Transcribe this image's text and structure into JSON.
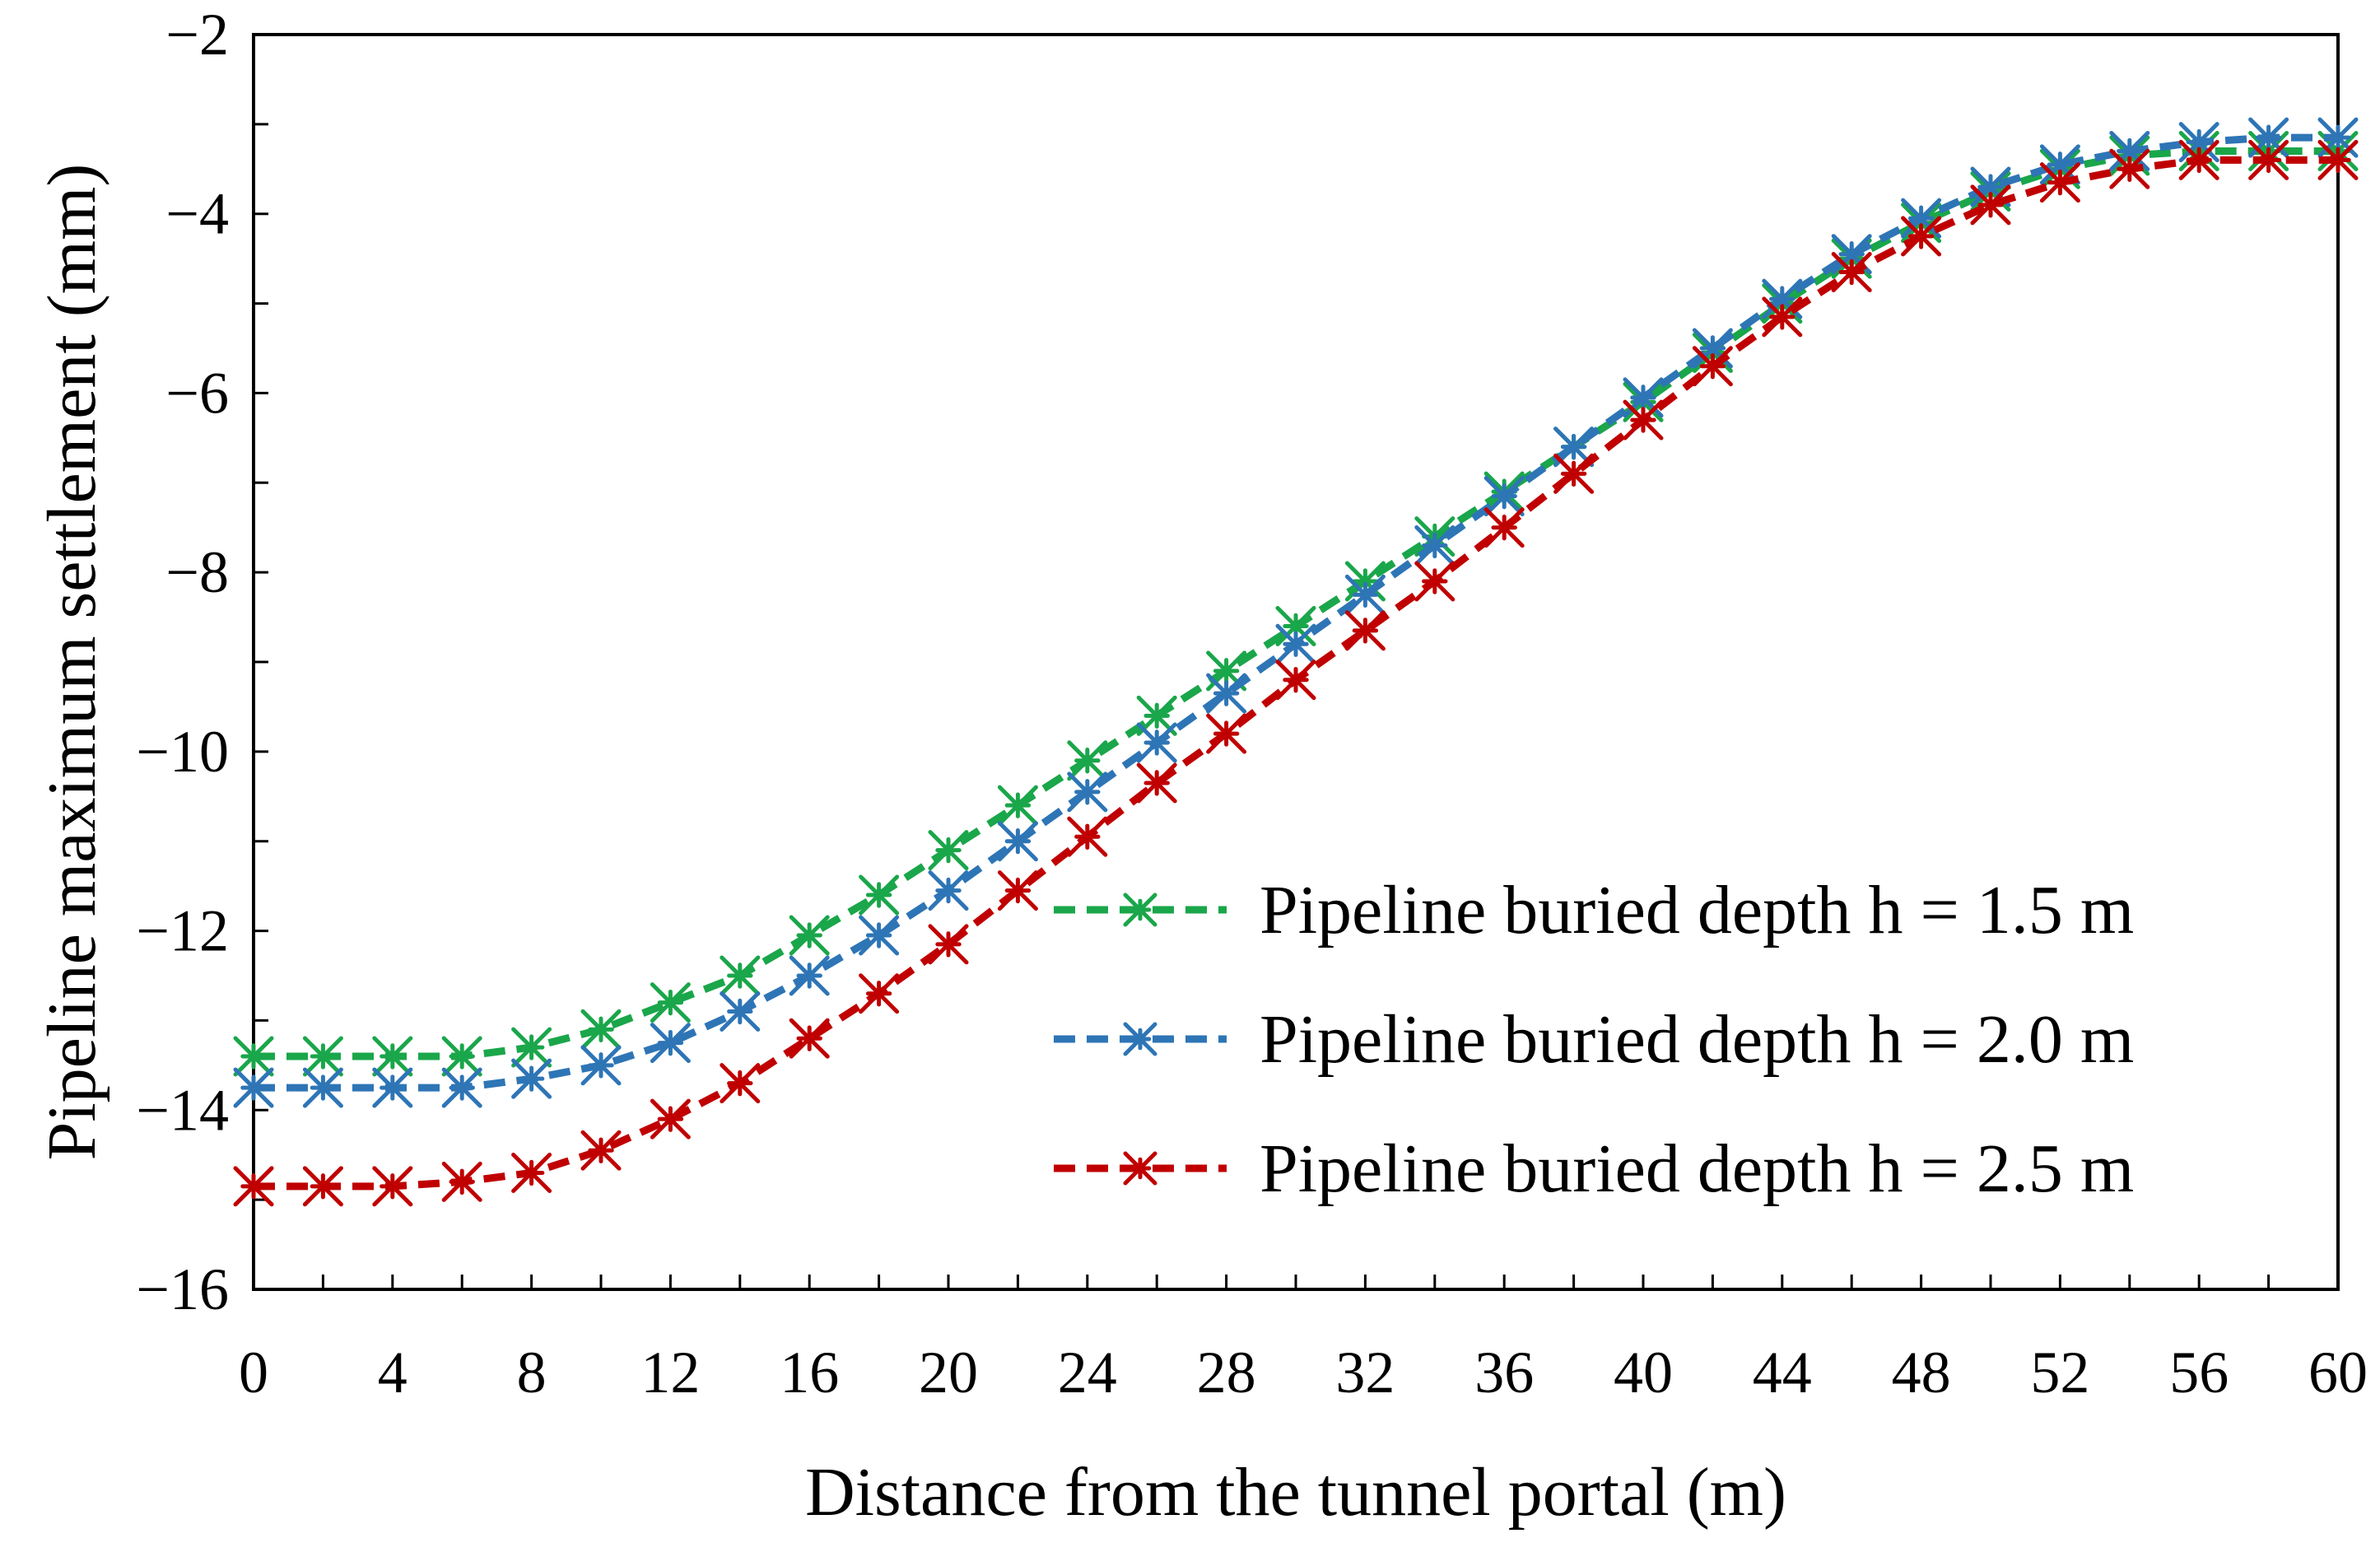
{
  "chart_data": {
    "type": "line",
    "title": "",
    "xlabel": "Distance from the tunnel portal (m)",
    "ylabel": "Pipeline maximum settlement (mm)",
    "xlim": [
      0,
      60
    ],
    "ylim": [
      -16,
      -2
    ],
    "xticks": [
      0,
      4,
      8,
      12,
      16,
      20,
      24,
      28,
      32,
      36,
      40,
      44,
      48,
      52,
      56,
      60
    ],
    "yticks": [
      -16,
      -14,
      -12,
      -10,
      -8,
      -6,
      -4,
      -2
    ],
    "xtick_labels": [
      "0",
      "4",
      "8",
      "12",
      "16",
      "20",
      "24",
      "28",
      "32",
      "36",
      "40",
      "44",
      "48",
      "52",
      "56",
      "60"
    ],
    "ytick_labels": [
      "−16",
      "−14",
      "−12",
      "−10",
      "−8",
      "−6",
      "−4",
      "−2"
    ],
    "grid": false,
    "legend_position": "right",
    "x": [
      0,
      2,
      4,
      6,
      8,
      10,
      12,
      14,
      16,
      18,
      20,
      22,
      24,
      26,
      28,
      30,
      32,
      34,
      36,
      38,
      40,
      42,
      44,
      46,
      48,
      50,
      52,
      54,
      56,
      58,
      60
    ],
    "series": [
      {
        "name": "Pipeline buried depth h = 1.5 m",
        "color": "#1aa64a",
        "values": [
          -13.4,
          -13.4,
          -13.4,
          -13.4,
          -13.3,
          -13.1,
          -12.8,
          -12.5,
          -12.05,
          -11.6,
          -11.1,
          -10.6,
          -10.1,
          -9.6,
          -9.1,
          -8.6,
          -8.1,
          -7.6,
          -7.1,
          -6.6,
          -6.1,
          -5.55,
          -5.0,
          -4.5,
          -4.1,
          -3.75,
          -3.5,
          -3.35,
          -3.3,
          -3.3,
          -3.3
        ]
      },
      {
        "name": "Pipeline buried depth h = 2.0 m",
        "color": "#2e75b6",
        "values": [
          -13.75,
          -13.75,
          -13.75,
          -13.75,
          -13.65,
          -13.5,
          -13.25,
          -12.9,
          -12.5,
          -12.05,
          -11.55,
          -11.0,
          -10.45,
          -9.9,
          -9.35,
          -8.8,
          -8.25,
          -7.7,
          -7.15,
          -6.6,
          -6.05,
          -5.5,
          -4.95,
          -4.45,
          -4.05,
          -3.7,
          -3.45,
          -3.3,
          -3.2,
          -3.15,
          -3.15
        ]
      },
      {
        "name": "Pipeline buried depth h = 2.5 m",
        "color": "#c00000",
        "values": [
          -14.85,
          -14.85,
          -14.85,
          -14.8,
          -14.7,
          -14.45,
          -14.1,
          -13.7,
          -13.2,
          -12.7,
          -12.15,
          -11.55,
          -10.95,
          -10.35,
          -9.8,
          -9.2,
          -8.65,
          -8.1,
          -7.5,
          -6.9,
          -6.3,
          -5.7,
          -5.15,
          -4.65,
          -4.25,
          -3.9,
          -3.65,
          -3.5,
          -3.4,
          -3.4,
          -3.4
        ]
      }
    ]
  }
}
